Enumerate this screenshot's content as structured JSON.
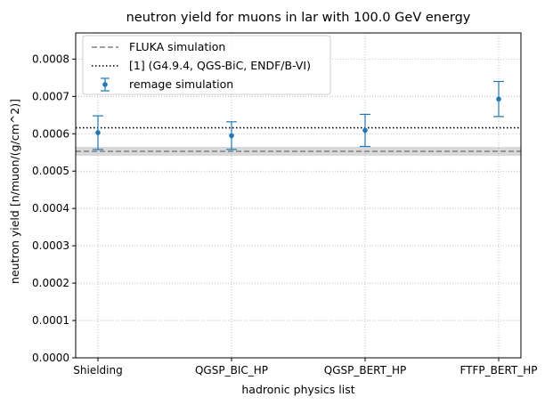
{
  "chart_data": {
    "type": "scatter",
    "title": "neutron yield for muons in lar with 100.0 GeV energy",
    "xlabel": "hadronic physics list",
    "ylabel": "neutron yield [n/muon/(g/cm^2)]",
    "categories": [
      "Shielding",
      "QGSP_BIC_HP",
      "QGSP_BERT_HP",
      "FTFP_BERT_HP"
    ],
    "ylim": [
      0,
      0.00087
    ],
    "yticks": [
      "0.0000",
      "0.0001",
      "0.0002",
      "0.0003",
      "0.0004",
      "0.0005",
      "0.0006",
      "0.0007",
      "0.0008"
    ],
    "ytick_values": [
      0,
      0.0001,
      0.0002,
      0.0003,
      0.0004,
      0.0005,
      0.0006,
      0.0007,
      0.0008
    ],
    "grid": true,
    "legend_placement": "top-left",
    "series": [
      {
        "name": "remage simulation",
        "kind": "errorbar",
        "color": "#1f77b4",
        "values": [
          0.000603,
          0.000595,
          0.000609,
          0.000693
        ],
        "err_low": [
          4.5e-05,
          3.7e-05,
          4.3e-05,
          4.7e-05
        ],
        "err_high": [
          4.5e-05,
          3.7e-05,
          4.3e-05,
          4.7e-05
        ]
      }
    ],
    "reference_lines": [
      {
        "name": "FLUKA simulation",
        "style": "dashed",
        "color": "#808080",
        "value": 0.000553,
        "band": [
          0.000541,
          0.000565
        ],
        "band_color": "#d9d9d9"
      },
      {
        "name": "[1] (G4.9.4, QGS-BiC, ENDF/B-VI)",
        "style": "dotted",
        "color": "#000000",
        "value": 0.000616
      }
    ]
  }
}
